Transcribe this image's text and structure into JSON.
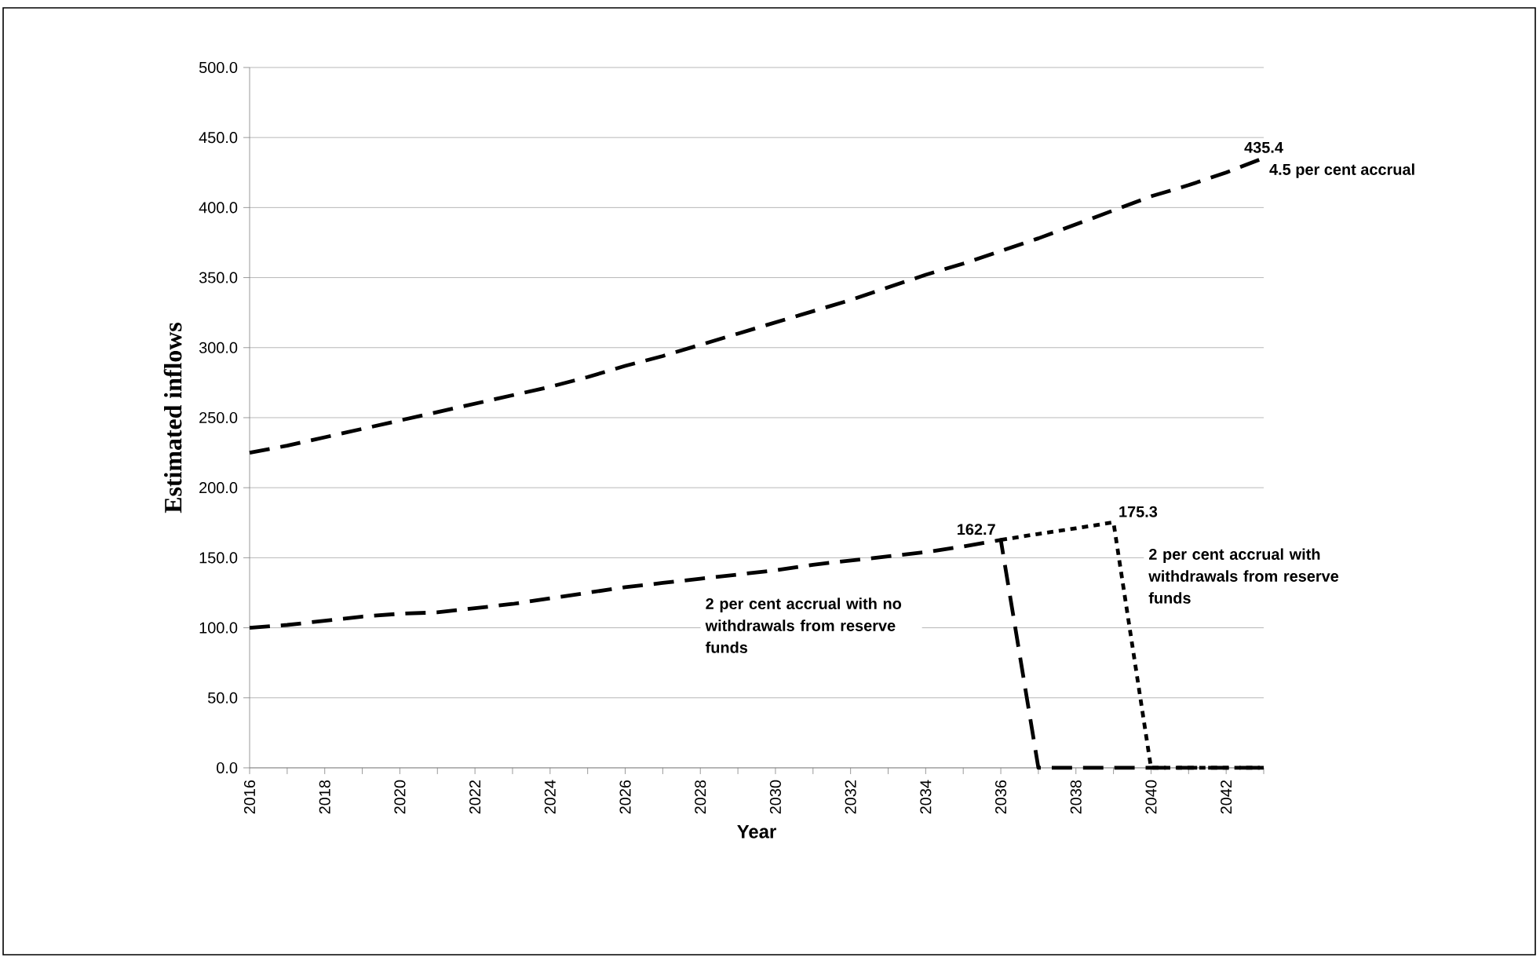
{
  "chart_data": {
    "type": "line",
    "xlabel": "Year",
    "ylabel": "Estimated inflows",
    "x": [
      2016,
      2017,
      2018,
      2019,
      2020,
      2021,
      2022,
      2023,
      2024,
      2025,
      2026,
      2027,
      2028,
      2029,
      2030,
      2031,
      2032,
      2033,
      2034,
      2035,
      2036,
      2037,
      2038,
      2039,
      2040,
      2041,
      2042,
      2043
    ],
    "series": [
      {
        "name": "4.5 per cent accrual",
        "color": "#000000",
        "line_style": "dashed",
        "values": [
          225,
          230,
          236,
          242,
          248,
          254,
          260,
          266,
          272,
          279,
          287,
          294,
          302,
          310,
          318,
          326,
          334,
          343,
          352,
          360,
          369,
          378,
          388,
          398,
          408,
          416,
          425,
          435.4
        ],
        "value_labels": [
          null,
          null,
          null,
          null,
          null,
          null,
          null,
          null,
          null,
          null,
          null,
          null,
          null,
          null,
          null,
          null,
          null,
          null,
          null,
          null,
          null,
          null,
          null,
          null,
          null,
          null,
          null,
          "435.4"
        ]
      },
      {
        "name": "2 per cent accrual with no withdrawals from reserve funds",
        "color": "#000000",
        "line_style": "dashed",
        "values": [
          100,
          102,
          105,
          108,
          110,
          111,
          114,
          117,
          121,
          125,
          129,
          132,
          135,
          138,
          141,
          145,
          148,
          151,
          154,
          158,
          162.7,
          0,
          0,
          0,
          0,
          0,
          0,
          0
        ],
        "value_labels": [
          null,
          null,
          null,
          null,
          null,
          null,
          null,
          null,
          null,
          null,
          null,
          null,
          null,
          null,
          null,
          null,
          null,
          null,
          null,
          null,
          "162.7",
          null,
          null,
          null,
          null,
          null,
          null,
          null
        ]
      },
      {
        "name": "2 per cent accrual with withdrawals from reserve funds",
        "color": "#000000",
        "line_style": "dotted",
        "values": [
          null,
          null,
          null,
          null,
          null,
          null,
          null,
          null,
          null,
          null,
          null,
          null,
          null,
          null,
          null,
          null,
          null,
          null,
          null,
          null,
          162.7,
          167,
          171,
          175.3,
          0,
          0,
          0,
          0
        ],
        "value_labels": [
          null,
          null,
          null,
          null,
          null,
          null,
          null,
          null,
          null,
          null,
          null,
          null,
          null,
          null,
          null,
          null,
          null,
          null,
          null,
          null,
          null,
          null,
          null,
          "175.3",
          null,
          null,
          null,
          null
        ]
      }
    ],
    "xlim": [
      2016,
      2043
    ],
    "xticks": [
      2016,
      {
        "value": 2017,
        "label": null
      },
      2018,
      {
        "value": 2019,
        "label": null
      },
      2020,
      {
        "value": 2021,
        "label": null
      },
      2022,
      {
        "value": 2023,
        "label": null
      },
      2024,
      {
        "value": 2025,
        "label": null
      },
      2026,
      {
        "value": 2027,
        "label": null
      },
      2028,
      {
        "value": 2029,
        "label": null
      },
      2030,
      {
        "value": 2031,
        "label": null
      },
      2032,
      {
        "value": 2033,
        "label": null
      },
      2034,
      {
        "value": 2035,
        "label": null
      },
      2036,
      {
        "value": 2037,
        "label": null
      },
      2038,
      {
        "value": 2039,
        "label": null
      },
      2040,
      {
        "value": 2041,
        "label": null
      },
      2042,
      {
        "value": 2043,
        "label": null
      }
    ],
    "ylim": [
      0,
      500
    ],
    "yticks": [
      {
        "value": 0,
        "label": "0.0"
      },
      {
        "value": 50,
        "label": "50.0"
      },
      {
        "value": 100,
        "label": "100.0"
      },
      {
        "value": 150,
        "label": "150.0"
      },
      {
        "value": 200,
        "label": "200.0"
      },
      {
        "value": 250,
        "label": "250.0"
      },
      {
        "value": 300,
        "label": "300.0"
      },
      {
        "value": 350,
        "label": "350.0"
      },
      {
        "value": 400,
        "label": "400.0"
      },
      {
        "value": 450,
        "label": "450.0"
      },
      {
        "value": 500,
        "label": "500.0"
      }
    ],
    "grid": "y",
    "legend": false
  }
}
